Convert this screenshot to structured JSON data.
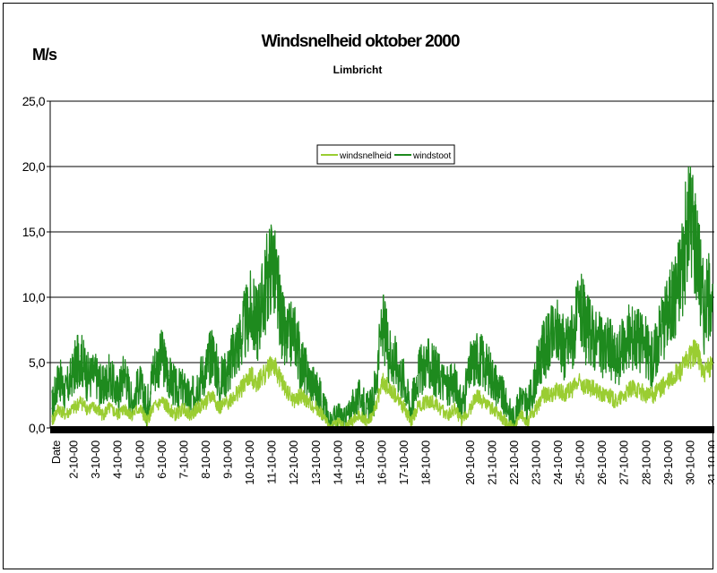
{
  "chart_data": {
    "type": "line",
    "title": "Windsnelheid oktober 2000",
    "subtitle": "Limbricht",
    "ylabel": "M/s",
    "xlabel": "Date",
    "ylim": [
      0,
      25
    ],
    "y_ticks": [
      "0,0",
      "5,0",
      "10,0",
      "15,0",
      "20,0",
      "25,0"
    ],
    "y_tick_values": [
      0,
      5,
      10,
      15,
      20,
      25
    ],
    "grid": "horizontal",
    "legend_position": "top-center",
    "x_ticks": [
      "2-10-00",
      "3-10-00",
      "4-10-00",
      "5-10-00",
      "6-10-00",
      "7-10-00",
      "8-10-00",
      "9-10-00",
      "10-10-00",
      "11-10-00",
      "12-10-00",
      "13-10-00",
      "14-10-00",
      "15-10-00",
      "16-10-00",
      "17-10-00",
      "18-10-00",
      "20-10-00",
      "21-10-00",
      "22-10-00",
      "23-10-00",
      "24-10-00",
      "25-10-00",
      "26-10-00",
      "27-10-00",
      "28-10-00",
      "29-10-00",
      "30-10-00",
      "31-10-00"
    ],
    "x_day_of_october": [
      2,
      3,
      4,
      5,
      6,
      7,
      8,
      9,
      10,
      11,
      12,
      13,
      14,
      15,
      16,
      17,
      18,
      20,
      21,
      22,
      23,
      24,
      25,
      26,
      27,
      28,
      29,
      30,
      31
    ],
    "x_range_days": [
      1,
      31
    ],
    "series": [
      {
        "name": "windsnelheid",
        "color": "#9acd32",
        "x_day": [
          1.0,
          1.3,
          1.6,
          2.0,
          2.3,
          2.6,
          3.0,
          3.3,
          3.6,
          4.0,
          4.3,
          4.6,
          5.0,
          5.3,
          5.6,
          6.0,
          6.3,
          6.6,
          7.0,
          7.3,
          7.6,
          8.0,
          8.3,
          8.6,
          9.0,
          9.3,
          9.6,
          10.0,
          10.3,
          10.6,
          11.0,
          11.3,
          11.6,
          12.0,
          12.3,
          12.6,
          13.0,
          13.3,
          13.6,
          14.0,
          14.3,
          14.6,
          15.0,
          15.3,
          15.6,
          16.0,
          16.3,
          16.6,
          17.0,
          17.3,
          17.6,
          18.0,
          18.3,
          18.6,
          19.0,
          19.3,
          19.6,
          20.0,
          20.3,
          20.6,
          21.0,
          21.3,
          21.6,
          22.0,
          22.3,
          22.6,
          23.0,
          23.3,
          23.6,
          24.0,
          24.3,
          24.6,
          25.0,
          25.3,
          25.6,
          26.0,
          26.3,
          26.6,
          27.0,
          27.3,
          27.6,
          28.0,
          28.3,
          28.6,
          29.0,
          29.3,
          29.6,
          30.0,
          30.3,
          30.6,
          31.0
        ],
        "values": [
          0.5,
          1.5,
          1.0,
          1.5,
          2.0,
          1.5,
          1.5,
          1.0,
          1.5,
          1.0,
          1.5,
          1.0,
          1.5,
          0.5,
          1.5,
          2.0,
          1.5,
          1.0,
          1.5,
          1.0,
          1.5,
          2.0,
          2.5,
          1.5,
          2.0,
          2.5,
          3.0,
          4.0,
          3.5,
          4.0,
          5.0,
          4.0,
          3.0,
          2.0,
          2.5,
          2.0,
          1.5,
          1.0,
          0.0,
          0.5,
          0.0,
          0.5,
          1.0,
          0.5,
          1.0,
          3.5,
          3.0,
          2.5,
          1.5,
          0.5,
          1.5,
          2.0,
          2.0,
          1.5,
          1.0,
          1.5,
          0.5,
          1.5,
          2.5,
          2.0,
          1.5,
          1.0,
          0.5,
          0.0,
          1.0,
          0.5,
          1.5,
          2.5,
          2.5,
          3.0,
          2.5,
          3.0,
          3.5,
          3.0,
          3.0,
          2.5,
          2.5,
          2.0,
          2.5,
          3.0,
          3.0,
          2.5,
          2.5,
          3.0,
          3.5,
          4.0,
          4.5,
          5.5,
          6.0,
          4.0,
          5.0
        ]
      },
      {
        "name": "windstoot",
        "color": "#1e8a1e",
        "x_day": [
          1.0,
          1.3,
          1.6,
          2.0,
          2.3,
          2.6,
          3.0,
          3.3,
          3.6,
          4.0,
          4.3,
          4.6,
          5.0,
          5.3,
          5.6,
          6.0,
          6.3,
          6.6,
          7.0,
          7.3,
          7.6,
          8.0,
          8.3,
          8.6,
          9.0,
          9.3,
          9.6,
          10.0,
          10.3,
          10.6,
          11.0,
          11.3,
          11.6,
          12.0,
          12.3,
          12.6,
          13.0,
          13.3,
          13.6,
          14.0,
          14.3,
          14.6,
          15.0,
          15.3,
          15.6,
          16.0,
          16.3,
          16.6,
          17.0,
          17.3,
          17.6,
          18.0,
          18.3,
          18.6,
          19.0,
          19.3,
          19.6,
          20.0,
          20.3,
          20.6,
          21.0,
          21.3,
          21.6,
          22.0,
          22.3,
          22.6,
          23.0,
          23.3,
          23.6,
          24.0,
          24.3,
          24.6,
          25.0,
          25.3,
          25.6,
          26.0,
          26.3,
          26.6,
          27.0,
          27.3,
          27.6,
          28.0,
          28.3,
          28.6,
          29.0,
          29.3,
          29.6,
          30.0,
          30.3,
          30.6,
          31.0
        ],
        "values": [
          1.5,
          4.0,
          2.5,
          4.5,
          5.5,
          4.0,
          4.0,
          3.0,
          4.0,
          2.5,
          4.5,
          2.0,
          3.5,
          1.5,
          4.5,
          5.5,
          4.0,
          3.0,
          3.0,
          2.0,
          3.5,
          4.5,
          6.0,
          3.5,
          4.5,
          6.0,
          7.0,
          9.0,
          8.0,
          10.0,
          13.0,
          9.5,
          6.5,
          7.5,
          5.0,
          4.0,
          3.0,
          2.0,
          0.5,
          1.0,
          0.5,
          1.5,
          2.5,
          1.5,
          2.0,
          8.0,
          6.0,
          5.0,
          3.5,
          1.5,
          4.0,
          5.0,
          4.5,
          4.0,
          3.0,
          3.5,
          1.5,
          4.5,
          5.5,
          5.0,
          4.0,
          3.0,
          2.0,
          0.5,
          2.5,
          1.5,
          4.0,
          6.0,
          6.5,
          7.5,
          6.0,
          7.0,
          9.0,
          7.5,
          7.0,
          6.0,
          6.5,
          5.0,
          6.5,
          7.0,
          7.0,
          6.0,
          5.0,
          7.5,
          9.0,
          10.0,
          12.5,
          16.5,
          14.0,
          9.0,
          11.0
        ]
      }
    ]
  }
}
